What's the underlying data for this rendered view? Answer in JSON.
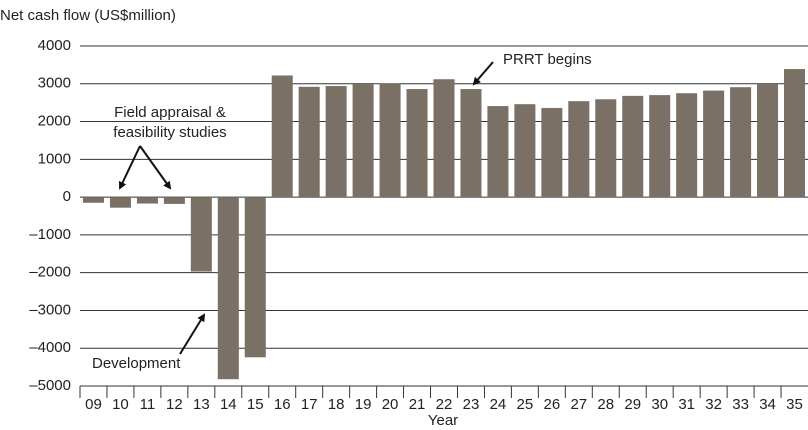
{
  "chart_data": {
    "type": "bar",
    "y_label": "Net cash flow (US$million)",
    "x_label": "Year",
    "categories": [
      "09",
      "10",
      "11",
      "12",
      "13",
      "14",
      "15",
      "16",
      "17",
      "18",
      "19",
      "20",
      "21",
      "22",
      "23",
      "24",
      "25",
      "26",
      "27",
      "28",
      "29",
      "30",
      "31",
      "32",
      "33",
      "34",
      "35"
    ],
    "values": [
      -150,
      -280,
      -170,
      -180,
      -1970,
      -4820,
      -4240,
      3220,
      2920,
      2940,
      2990,
      3010,
      2860,
      3120,
      2860,
      2410,
      2460,
      2360,
      2540,
      2590,
      2680,
      2700,
      2750,
      2820,
      2910,
      2990,
      3390
    ],
    "color": "#7a7065",
    "ylim": [
      -5000,
      4000
    ],
    "yticks": [
      {
        "value": -5000,
        "label": "–5000"
      },
      {
        "value": -4000,
        "label": "–4000"
      },
      {
        "value": -3000,
        "label": "–3000"
      },
      {
        "value": -2000,
        "label": "–2000"
      },
      {
        "value": -1000,
        "label": "–1000"
      },
      0,
      1000,
      2000,
      3000,
      4000
    ],
    "grid": true,
    "annotations": [
      "Field appraisal &",
      "feasibility studies",
      "Development",
      "PRRT begins"
    ]
  }
}
